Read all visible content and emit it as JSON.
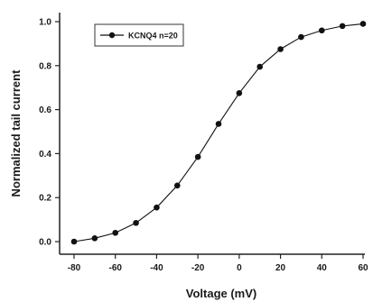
{
  "chart_data": {
    "type": "line",
    "xlabel": "Voltage (mV)",
    "ylabel": "Normalized tail current",
    "xlim": [
      -80,
      60
    ],
    "ylim": [
      0.0,
      1.0
    ],
    "x_ticks": [
      -80,
      -60,
      -40,
      -20,
      0,
      20,
      40,
      60
    ],
    "y_ticks": [
      0.0,
      0.2,
      0.4,
      0.6,
      0.8,
      1.0
    ],
    "x_tick_labels": [
      "-80",
      "-60",
      "-40",
      "-20",
      "0",
      "20",
      "40",
      "60"
    ],
    "y_tick_labels": [
      "0.0",
      "0.2",
      "0.4",
      "0.6",
      "0.8",
      "1.0"
    ],
    "grid": false,
    "legend_position": "top-left",
    "series": [
      {
        "name": "KCNQ4 n=20",
        "x": [
          -80,
          -70,
          -60,
          -50,
          -40,
          -30,
          -20,
          -10,
          0,
          10,
          20,
          30,
          40,
          50,
          60
        ],
        "y": [
          0.0,
          0.015,
          0.04,
          0.085,
          0.155,
          0.255,
          0.385,
          0.535,
          0.675,
          0.795,
          0.875,
          0.93,
          0.96,
          0.98,
          0.99
        ],
        "color": "#111111"
      }
    ]
  }
}
